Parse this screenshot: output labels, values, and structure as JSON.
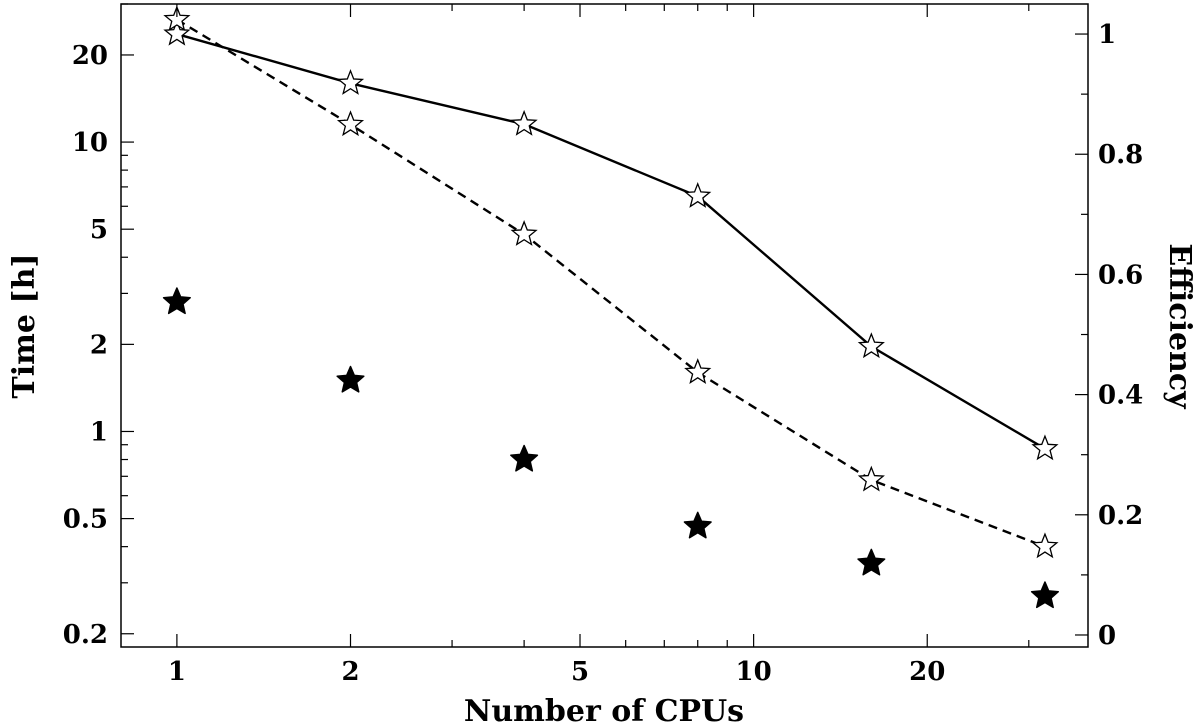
{
  "chart_data": {
    "type": "line",
    "title": "",
    "xlabel": "Number of CPUs",
    "ylabel": "Time [h]",
    "y2label": "Efficiency",
    "xscale": "log",
    "yscale": "log",
    "y2scale": "linear",
    "xlim": [
      0.8,
      38
    ],
    "ylim": [
      0.18,
      30
    ],
    "y2lim": [
      -0.02,
      1.05
    ],
    "xticks": [
      1,
      2,
      5,
      10,
      20
    ],
    "xtick_labels": [
      "1",
      "2",
      "5",
      "10",
      "20"
    ],
    "yticks": [
      0.2,
      0.5,
      1,
      2,
      5,
      10,
      20
    ],
    "ytick_labels": [
      "0.2",
      "0.5",
      "1",
      "2",
      "5",
      "10",
      "20"
    ],
    "y2ticks": [
      0,
      0.2,
      0.4,
      0.6,
      0.8,
      1
    ],
    "y2tick_labels": [
      "0",
      "0.2",
      "0.4",
      "0.6",
      "0.8",
      "1"
    ],
    "grid": false,
    "legend": "none",
    "x": [
      1,
      2,
      4,
      8,
      16,
      32
    ],
    "series": [
      {
        "axis": "right",
        "style": "solid-line-open-star",
        "color": "#000000",
        "values": [
          1.0,
          0.918,
          0.85,
          0.73,
          0.48,
          0.31
        ]
      },
      {
        "axis": "left",
        "style": "dashed-line-open-star",
        "color": "#000000",
        "values": [
          26.5,
          11.5,
          4.8,
          1.6,
          0.68,
          0.4
        ]
      },
      {
        "axis": "left",
        "style": "filled-star",
        "color": "#000000",
        "values": [
          2.8,
          1.5,
          0.8,
          0.47,
          0.35,
          0.27
        ]
      }
    ]
  }
}
